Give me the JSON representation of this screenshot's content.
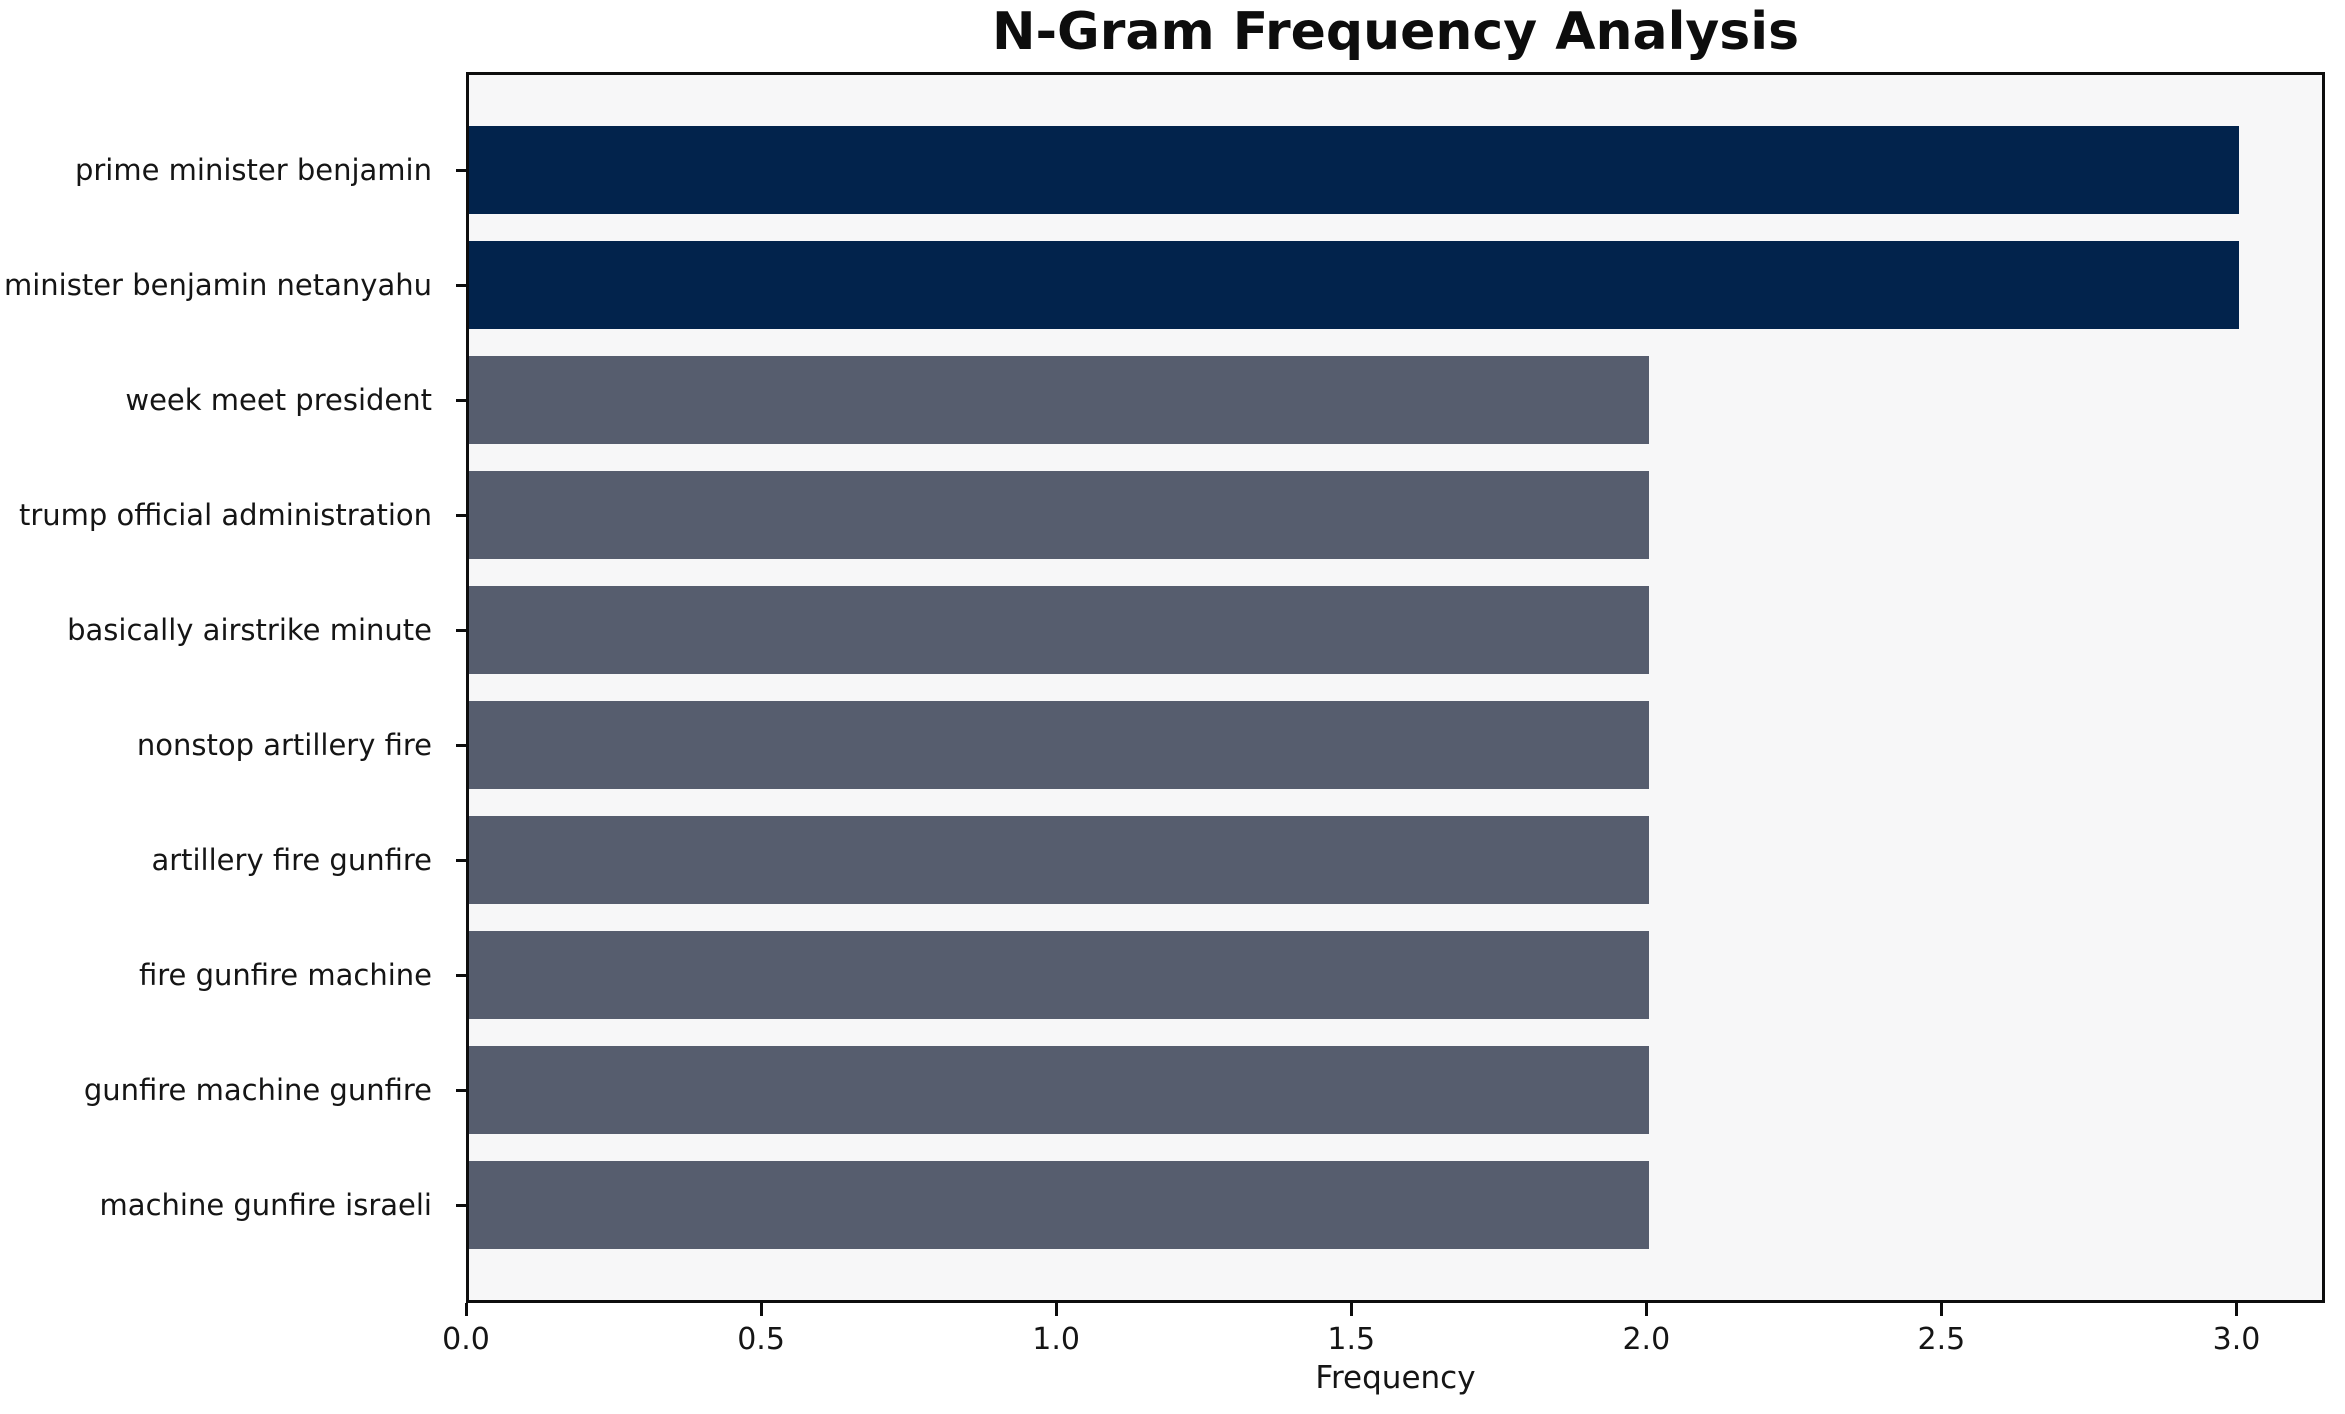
{
  "chart_data": {
    "type": "bar",
    "orientation": "horizontal",
    "title": "N-Gram Frequency Analysis",
    "xlabel": "Frequency",
    "ylabel": "",
    "categories": [
      "prime minister benjamin",
      "minister benjamin netanyahu",
      "week meet president",
      "trump official administration",
      "basically airstrike minute",
      "nonstop artillery fire",
      "artillery fire gunfire",
      "fire gunfire machine",
      "gunfire machine gunfire",
      "machine gunfire israeli"
    ],
    "values": [
      3,
      3,
      2,
      2,
      2,
      2,
      2,
      2,
      2,
      2
    ],
    "bar_colors": [
      "#02234c",
      "#02234c",
      "#565d6e",
      "#565d6e",
      "#565d6e",
      "#565d6e",
      "#565d6e",
      "#565d6e",
      "#565d6e",
      "#565d6e"
    ],
    "xlim": [
      0,
      3.15
    ],
    "x_ticks": [
      {
        "value": 0,
        "label": "0.0"
      },
      {
        "value": 0.5,
        "label": "0.5"
      },
      {
        "value": 1,
        "label": "1.0"
      },
      {
        "value": 1.5,
        "label": "1.5"
      },
      {
        "value": 2,
        "label": "2.0"
      },
      {
        "value": 2.5,
        "label": "2.5"
      },
      {
        "value": 3,
        "label": "3.0"
      }
    ],
    "grid": false,
    "legend_position": "none",
    "colors": {
      "plot_background": "#f7f7f8",
      "figure_background": "#ffffff",
      "spine": "#0d0d0d",
      "text": "#151515",
      "bar_high": "#02234c",
      "bar_low": "#565d6e"
    }
  }
}
